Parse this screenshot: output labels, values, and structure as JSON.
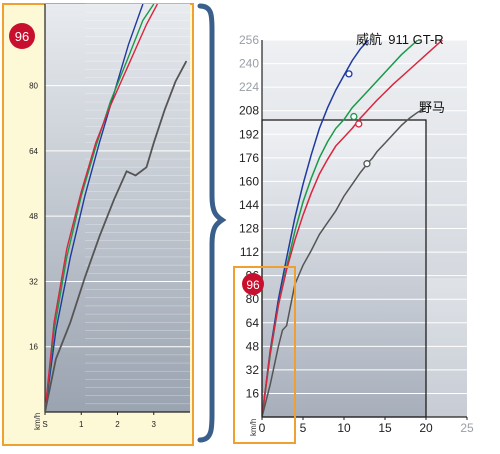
{
  "colors": {
    "highlight_badge": "#c8102e",
    "highlight_box": "#f0a030",
    "highlight_panel_bg": "#fdf8d6",
    "brace": "#3a5f8a",
    "plot_bg_dark": "#b6bdc8",
    "plot_bg_light": "#e3e6ea"
  },
  "badge_left": "96",
  "badge_right": "96",
  "chart_data": [
    {
      "type": "line",
      "id": "zoomed-left",
      "ylabel": "km/h",
      "xlabel": "",
      "xlim": [
        0,
        4
      ],
      "ylim": [
        0,
        100
      ],
      "x_ticks": [
        "S",
        "1",
        "2",
        "3"
      ],
      "y_ticks": [
        16,
        32,
        48,
        64,
        80
      ],
      "series": [
        {
          "color": "#1f3a9e",
          "points": [
            [
              0,
              0
            ],
            [
              0.3,
              20
            ],
            [
              0.7,
              38
            ],
            [
              1.1,
              53
            ],
            [
              1.5,
              66
            ],
            [
              1.9,
              78
            ],
            [
              2.3,
              90
            ],
            [
              2.7,
              100
            ]
          ]
        },
        {
          "color": "#1a9a4a",
          "points": [
            [
              0,
              0
            ],
            [
              0.25,
              20
            ],
            [
              0.6,
              38
            ],
            [
              1.0,
              53
            ],
            [
              1.4,
              65
            ],
            [
              1.8,
              76
            ],
            [
              2.3,
              87
            ],
            [
              2.7,
              96
            ],
            [
              3.0,
              100
            ]
          ]
        },
        {
          "color": "#d9263f",
          "points": [
            [
              0,
              0
            ],
            [
              0.25,
              22
            ],
            [
              0.6,
              40
            ],
            [
              1.0,
              54
            ],
            [
              1.4,
              66
            ],
            [
              1.8,
              75
            ],
            [
              2.3,
              85
            ],
            [
              2.8,
              95
            ],
            [
              3.1,
              100
            ]
          ]
        },
        {
          "color": "#555555",
          "points": [
            [
              0,
              0
            ],
            [
              0.3,
              13
            ],
            [
              0.7,
              22
            ],
            [
              1.1,
              33
            ],
            [
              1.5,
              43
            ],
            [
              1.9,
              52
            ],
            [
              2.25,
              59
            ],
            [
              2.5,
              58
            ],
            [
              2.8,
              60
            ],
            [
              3.0,
              66
            ],
            [
              3.3,
              74
            ],
            [
              3.6,
              81
            ],
            [
              3.9,
              86
            ]
          ]
        }
      ]
    },
    {
      "type": "line",
      "id": "full-right",
      "ylabel": "km/h",
      "xlabel": "",
      "xlim": [
        0,
        25
      ],
      "ylim": [
        0,
        256
      ],
      "x_ticks": [
        0,
        5,
        10,
        15,
        20,
        25
      ],
      "y_ticks": [
        16,
        32,
        48,
        64,
        80,
        96,
        112,
        128,
        144,
        160,
        176,
        192,
        208,
        224,
        240,
        256
      ],
      "series": [
        {
          "name": "威航",
          "color": "#1f3a9e",
          "points": [
            [
              0,
              0
            ],
            [
              1,
              45
            ],
            [
              2,
              80
            ],
            [
              3,
              108
            ],
            [
              4,
              135
            ],
            [
              5,
              158
            ],
            [
              6,
              178
            ],
            [
              7,
              196
            ],
            [
              8,
              210
            ],
            [
              9,
              222
            ],
            [
              10,
              232
            ],
            [
              11,
              242
            ],
            [
              12,
              250
            ],
            [
              13,
              256
            ]
          ],
          "marker": [
            10.6,
            233
          ]
        },
        {
          "name": "911 GT-R",
          "color": "#1a9a4a",
          "points": [
            [
              0,
              0
            ],
            [
              1,
              42
            ],
            [
              2,
              76
            ],
            [
              3,
              102
            ],
            [
              4,
              126
            ],
            [
              5,
              146
            ],
            [
              6,
              162
            ],
            [
              7,
              176
            ],
            [
              8,
              187
            ],
            [
              9,
              196
            ],
            [
              10,
              202
            ],
            [
              11,
              210
            ],
            [
              13,
              222
            ],
            [
              15,
              234
            ],
            [
              17,
              246
            ],
            [
              19,
              256
            ]
          ],
          "marker": [
            11.2,
            204
          ]
        },
        {
          "name": "",
          "color": "#d9263f",
          "points": [
            [
              0,
              0
            ],
            [
              1,
              44
            ],
            [
              2,
              76
            ],
            [
              3,
              100
            ],
            [
              4,
              120
            ],
            [
              5,
              137
            ],
            [
              6,
              152
            ],
            [
              7,
              165
            ],
            [
              8,
              175
            ],
            [
              9,
              184
            ],
            [
              10,
              190
            ],
            [
              11,
              196
            ],
            [
              12,
              203
            ],
            [
              14,
              215
            ],
            [
              16,
              226
            ],
            [
              18,
              236
            ],
            [
              20,
              246
            ],
            [
              22,
              256
            ]
          ],
          "marker": [
            11.8,
            199
          ]
        },
        {
          "name": "野马",
          "color": "#555555",
          "points": [
            [
              0,
              0
            ],
            [
              1,
              22
            ],
            [
              2,
              48
            ],
            [
              2.5,
              59
            ],
            [
              3,
              62
            ],
            [
              4,
              90
            ],
            [
              5,
              103
            ],
            [
              6,
              113
            ],
            [
              7,
              124
            ],
            [
              8,
              132
            ],
            [
              9,
              140
            ],
            [
              10,
              150
            ],
            [
              11,
              158
            ],
            [
              12,
              166
            ],
            [
              13,
              173
            ],
            [
              13.5,
              176
            ],
            [
              14,
              180
            ],
            [
              15,
              186
            ],
            [
              16,
              192
            ],
            [
              17,
              198
            ],
            [
              18,
              203
            ],
            [
              19,
              207
            ],
            [
              20,
              210
            ]
          ],
          "marker": [
            12.8,
            172
          ]
        }
      ]
    }
  ]
}
